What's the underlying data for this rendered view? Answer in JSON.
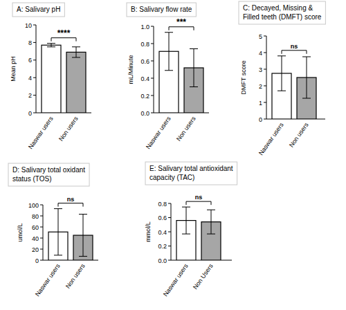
{
  "chart_data": [
    {
      "type": "bar",
      "title": "A: Salivary pH",
      "y_label": "Mean pH",
      "categories": [
        "Naswar users",
        "Non users"
      ],
      "values": [
        7.7,
        6.9
      ],
      "errors": [
        0.2,
        0.6
      ],
      "colors": [
        "#ffffff",
        "#a6a6a6"
      ],
      "ylim": [
        0,
        10
      ],
      "yticks": [
        0,
        2,
        4,
        6,
        8,
        10
      ],
      "annotation": "****"
    },
    {
      "type": "bar",
      "title": "B: Salivary flow rate",
      "y_label": "mL/Minute",
      "categories": [
        "Naswar users",
        "Non users"
      ],
      "values": [
        0.71,
        0.52
      ],
      "errors": [
        0.22,
        0.22
      ],
      "colors": [
        "#ffffff",
        "#a6a6a6"
      ],
      "ylim": [
        0,
        1
      ],
      "yticks": [
        {
          "value": 0,
          "label": "0.0"
        },
        0.2,
        0.4,
        0.6,
        0.8,
        {
          "value": 1,
          "label": "1.0"
        }
      ],
      "annotation": "***"
    },
    {
      "type": "bar",
      "title": "C: Decayed, Missing & Filled teeth (DMFT) score",
      "y_label": "DMFT score",
      "categories": [
        "Naswar users",
        "Non users"
      ],
      "values": [
        2.75,
        2.5
      ],
      "errors": [
        1.05,
        1.25
      ],
      "colors": [
        "#ffffff",
        "#a6a6a6"
      ],
      "ylim": [
        0,
        5
      ],
      "yticks": [
        0,
        1,
        2,
        3,
        4,
        5
      ],
      "annotation": "ns"
    },
    {
      "type": "bar",
      "title": "D: Salivary total oxidant status (TOS)",
      "y_label": "umol/L",
      "categories": [
        "Naswar users",
        "Non users"
      ],
      "values": [
        51,
        45
      ],
      "errors": [
        42,
        38
      ],
      "colors": [
        "#ffffff",
        "#a6a6a6"
      ],
      "ylim": [
        0,
        100
      ],
      "yticks": [
        0,
        20,
        40,
        60,
        80,
        100
      ],
      "annotation": "ns"
    },
    {
      "type": "bar",
      "title": "E: Salivary total antioxidant capacity (TAC)",
      "y_label": "mmol/L",
      "categories": [
        "Naswar users",
        "Non Users"
      ],
      "values": [
        0.56,
        0.54
      ],
      "errors": [
        0.19,
        0.17
      ],
      "colors": [
        "#ffffff",
        "#a6a6a6"
      ],
      "ylim": [
        0,
        0.8
      ],
      "yticks": [
        {
          "value": 0,
          "label": "0.0"
        },
        0.2,
        0.4,
        0.6,
        0.8
      ],
      "annotation": "ns"
    }
  ]
}
